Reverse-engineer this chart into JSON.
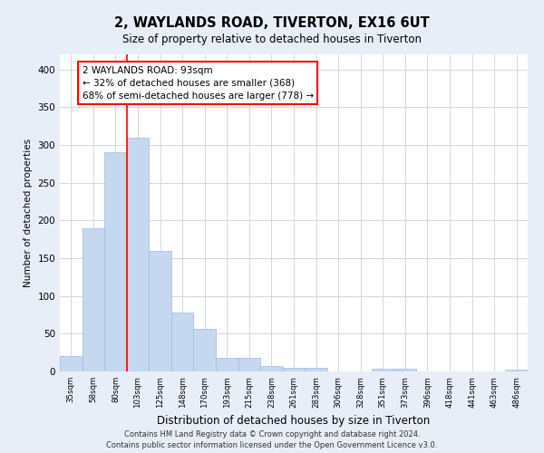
{
  "title1": "2, WAYLANDS ROAD, TIVERTON, EX16 6UT",
  "title2": "Size of property relative to detached houses in Tiverton",
  "xlabel": "Distribution of detached houses by size in Tiverton",
  "ylabel": "Number of detached properties",
  "footnote1": "Contains HM Land Registry data © Crown copyright and database right 2024.",
  "footnote2": "Contains public sector information licensed under the Open Government Licence v3.0.",
  "categories": [
    "35sqm",
    "58sqm",
    "80sqm",
    "103sqm",
    "125sqm",
    "148sqm",
    "170sqm",
    "193sqm",
    "215sqm",
    "238sqm",
    "261sqm",
    "283sqm",
    "306sqm",
    "328sqm",
    "351sqm",
    "373sqm",
    "396sqm",
    "418sqm",
    "441sqm",
    "463sqm",
    "486sqm"
  ],
  "values": [
    20,
    190,
    290,
    310,
    160,
    78,
    57,
    18,
    18,
    7,
    5,
    5,
    0,
    0,
    4,
    4,
    0,
    0,
    0,
    0,
    3
  ],
  "bar_color": "#c5d8f0",
  "bar_edge_color": "#a0b8d8",
  "redline_x": 2.5,
  "annotation_text": "2 WAYLANDS ROAD: 93sqm\n← 32% of detached houses are smaller (368)\n68% of semi-detached houses are larger (778) →",
  "annotation_box_color": "white",
  "annotation_box_edge_color": "red",
  "redline_color": "red",
  "ylim": [
    0,
    420
  ],
  "yticks": [
    0,
    50,
    100,
    150,
    200,
    250,
    300,
    350,
    400
  ],
  "bg_color": "#e8eef8",
  "plot_bg_color": "white",
  "grid_color": "#c8d0e0"
}
